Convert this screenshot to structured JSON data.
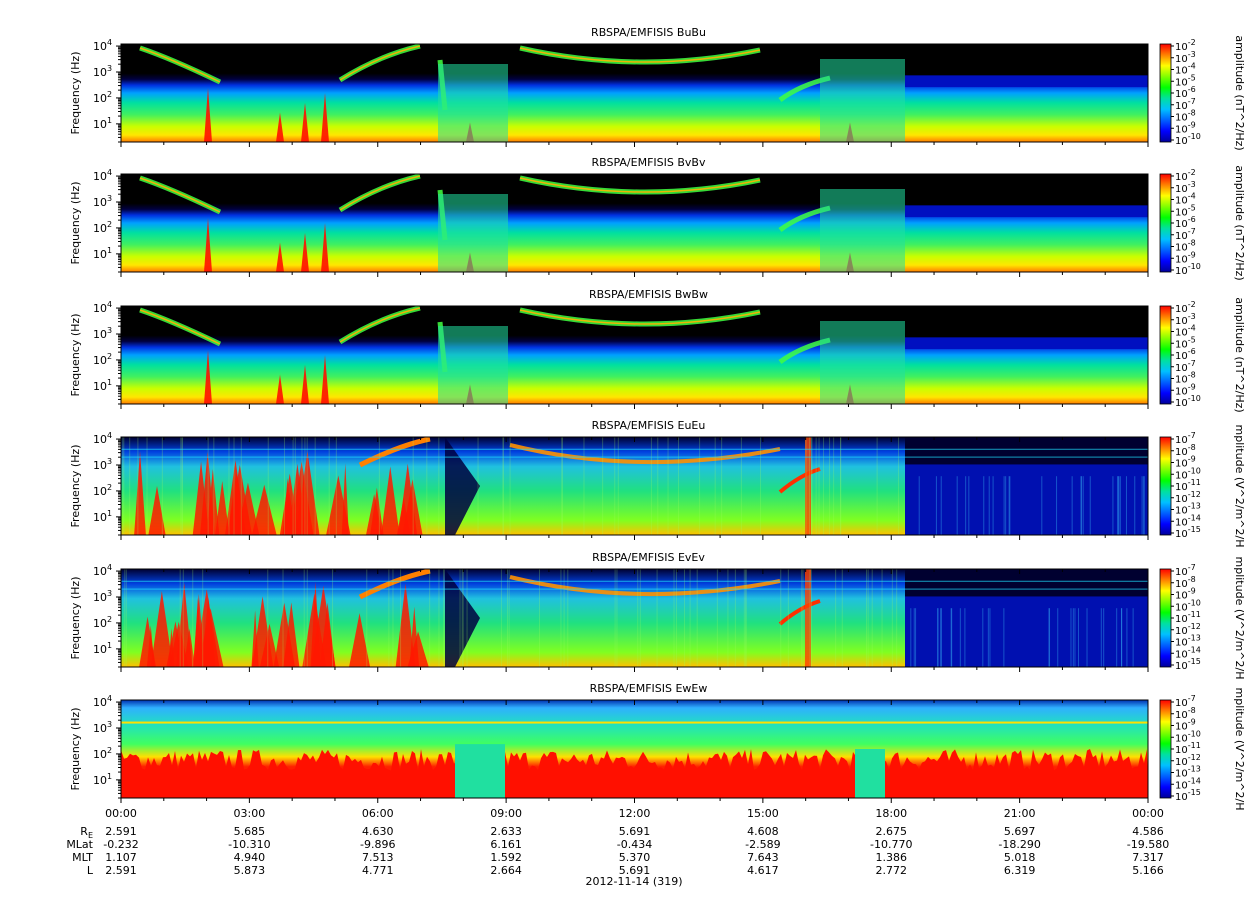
{
  "chart_data": {
    "type": "heatmap",
    "date_label": "2012-11-14 (319)",
    "x": {
      "ticks": [
        "00:00",
        "03:00",
        "06:00",
        "09:00",
        "12:00",
        "15:00",
        "18:00",
        "21:00",
        "00:00"
      ],
      "hours": [
        0,
        3,
        6,
        9,
        12,
        15,
        18,
        21,
        24
      ],
      "range_hours": [
        0,
        24
      ]
    },
    "panels": [
      {
        "title": "RBSPA/EMFISIS  BuBu",
        "ylabel": "Frequency (Hz)",
        "zlabel": "amplitude (nT^2/Hz)",
        "y_ticks": [
          "10^1",
          "10^2",
          "10^3",
          "10^4"
        ],
        "y_range_hz": [
          2,
          12000
        ],
        "y_scale": "log",
        "z_ticks": [
          "-2",
          "-3",
          "-4",
          "-5",
          "-6",
          "-7",
          "-8",
          "-9",
          "-10"
        ],
        "z_scale": "log"
      },
      {
        "title": "RBSPA/EMFISIS  BvBv",
        "ylabel": "Frequency (Hz)",
        "zlabel": "amplitude (nT^2/Hz)",
        "y_ticks": [
          "10^1",
          "10^2",
          "10^3",
          "10^4"
        ],
        "y_range_hz": [
          2,
          12000
        ],
        "y_scale": "log",
        "z_ticks": [
          "-2",
          "-3",
          "-4",
          "-5",
          "-6",
          "-7",
          "-8",
          "-9",
          "-10"
        ],
        "z_scale": "log"
      },
      {
        "title": "RBSPA/EMFISIS  BwBw",
        "ylabel": "Frequency (Hz)",
        "zlabel": "amplitude (nT^2/Hz)",
        "y_ticks": [
          "10^1",
          "10^2",
          "10^3",
          "10^4"
        ],
        "y_range_hz": [
          2,
          12000
        ],
        "y_scale": "log",
        "z_ticks": [
          "-2",
          "-3",
          "-4",
          "-5",
          "-6",
          "-7",
          "-8",
          "-9",
          "-10"
        ],
        "z_scale": "log"
      },
      {
        "title": "RBSPA/EMFISIS  EuEu",
        "ylabel": "Frequency (Hz)",
        "zlabel": "mplitude (V^2/m^2/H",
        "y_ticks": [
          "10^1",
          "10^2",
          "10^3",
          "10^4"
        ],
        "y_range_hz": [
          2,
          12000
        ],
        "y_scale": "log",
        "z_ticks": [
          "-7",
          "-8",
          "-9",
          "-10",
          "-11",
          "-12",
          "-13",
          "-14",
          "-15"
        ],
        "z_scale": "log"
      },
      {
        "title": "RBSPA/EMFISIS  EvEv",
        "ylabel": "Frequency (Hz)",
        "zlabel": "mplitude (V^2/m^2/H",
        "y_ticks": [
          "10^1",
          "10^2",
          "10^3",
          "10^4"
        ],
        "y_range_hz": [
          2,
          12000
        ],
        "y_scale": "log",
        "z_ticks": [
          "-7",
          "-8",
          "-9",
          "-10",
          "-11",
          "-12",
          "-13",
          "-14",
          "-15"
        ],
        "z_scale": "log"
      },
      {
        "title": "RBSPA/EMFISIS  EwEw",
        "ylabel": "Frequency (Hz)",
        "zlabel": "mplitude (V^2/m^2/H",
        "y_ticks": [
          "10^1",
          "10^2",
          "10^3",
          "10^4"
        ],
        "y_range_hz": [
          2,
          12000
        ],
        "y_scale": "log",
        "z_ticks": [
          "-7",
          "-8",
          "-9",
          "-10",
          "-11",
          "-12",
          "-13",
          "-14",
          "-15"
        ],
        "z_scale": "log"
      }
    ],
    "colorbar_colors": [
      "#ff0000",
      "#ff8000",
      "#ffff00",
      "#80ff00",
      "#00ff00",
      "#00e0a0",
      "#00c0ff",
      "#0060ff",
      "#0000ff",
      "#00009a"
    ],
    "ephemeris": [
      {
        "label": "R",
        "sub": "E",
        "values": [
          "2.591",
          "5.685",
          "4.630",
          "2.633",
          "5.691",
          "4.608",
          "2.675",
          "5.697",
          "4.586"
        ]
      },
      {
        "label": "MLat",
        "values": [
          "-0.232",
          "-10.310",
          "-9.896",
          "6.161",
          "-0.434",
          "-2.589",
          "-10.770",
          "-18.290",
          "-19.580"
        ]
      },
      {
        "label": "MLT",
        "values": [
          "1.107",
          "4.940",
          "7.513",
          "1.592",
          "5.370",
          "7.643",
          "1.386",
          "5.018",
          "7.317"
        ]
      },
      {
        "label": "L",
        "values": [
          "2.591",
          "5.873",
          "4.771",
          "2.664",
          "5.691",
          "4.617",
          "2.772",
          "6.319",
          "5.166"
        ]
      }
    ]
  }
}
